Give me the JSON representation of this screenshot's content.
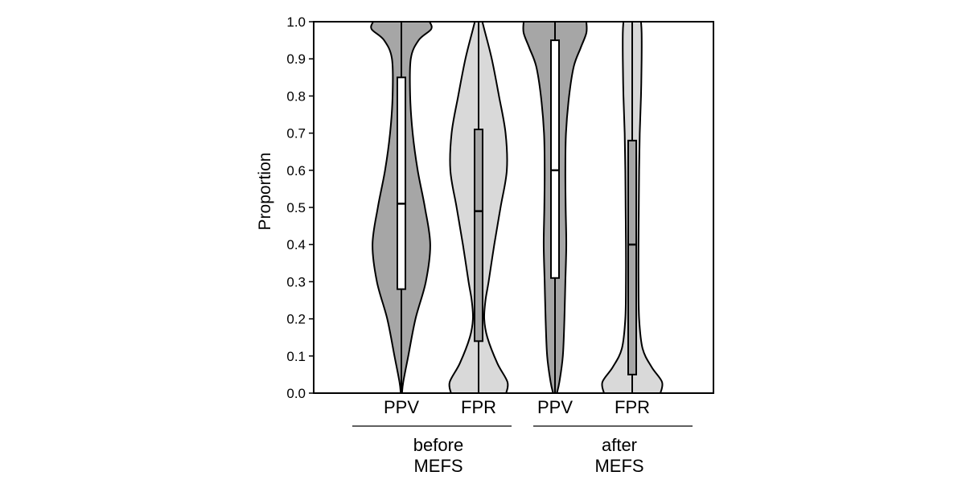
{
  "chart_data": {
    "type": "violin",
    "ylabel": "Proportion",
    "ylim": [
      0,
      1
    ],
    "yticks": [
      "0.0",
      "0.1",
      "0.2",
      "0.3",
      "0.4",
      "0.5",
      "0.6",
      "0.7",
      "0.8",
      "0.9",
      "1.0"
    ],
    "colors": {
      "PPV": "#a6a6a6",
      "FPR": "#d9d9d9"
    },
    "groups": [
      {
        "label_lines": [
          "before",
          "MEFS"
        ],
        "categories": [
          "PPV",
          "FPR"
        ]
      },
      {
        "label_lines": [
          "after",
          "MEFS"
        ],
        "categories": [
          "PPV",
          "FPR"
        ]
      }
    ],
    "violins": [
      {
        "category": "PPV",
        "group": "before",
        "color": "#a6a6a6",
        "box": {
          "q1": 0.28,
          "median": 0.51,
          "q3": 0.85,
          "min": 0.0,
          "max": 1.0
        },
        "density": [
          [
            0.0,
            0.02
          ],
          [
            0.03,
            0.06
          ],
          [
            0.1,
            0.22
          ],
          [
            0.2,
            0.45
          ],
          [
            0.3,
            0.78
          ],
          [
            0.4,
            0.92
          ],
          [
            0.5,
            0.75
          ],
          [
            0.6,
            0.52
          ],
          [
            0.7,
            0.36
          ],
          [
            0.8,
            0.28
          ],
          [
            0.9,
            0.3
          ],
          [
            0.95,
            0.55
          ],
          [
            0.98,
            0.95
          ],
          [
            1.0,
            0.9
          ]
        ]
      },
      {
        "category": "FPR",
        "group": "before",
        "color": "#d9d9d9",
        "box": {
          "q1": 0.14,
          "median": 0.49,
          "q3": 0.71,
          "min": 0.0,
          "max": 1.0
        },
        "density": [
          [
            0.0,
            0.88
          ],
          [
            0.03,
            0.92
          ],
          [
            0.08,
            0.6
          ],
          [
            0.15,
            0.28
          ],
          [
            0.2,
            0.18
          ],
          [
            0.25,
            0.22
          ],
          [
            0.3,
            0.32
          ],
          [
            0.4,
            0.5
          ],
          [
            0.5,
            0.7
          ],
          [
            0.6,
            0.9
          ],
          [
            0.7,
            0.86
          ],
          [
            0.8,
            0.65
          ],
          [
            0.9,
            0.42
          ],
          [
            0.98,
            0.18
          ],
          [
            1.0,
            0.12
          ]
        ]
      },
      {
        "category": "PPV",
        "group": "after",
        "color": "#a6a6a6",
        "box": {
          "q1": 0.31,
          "median": 0.6,
          "q3": 0.95,
          "min": 0.0,
          "max": 1.0
        },
        "density": [
          [
            0.0,
            0.06
          ],
          [
            0.03,
            0.14
          ],
          [
            0.1,
            0.25
          ],
          [
            0.2,
            0.3
          ],
          [
            0.3,
            0.33
          ],
          [
            0.4,
            0.36
          ],
          [
            0.5,
            0.34
          ],
          [
            0.6,
            0.33
          ],
          [
            0.7,
            0.35
          ],
          [
            0.8,
            0.45
          ],
          [
            0.88,
            0.6
          ],
          [
            0.93,
            0.82
          ],
          [
            0.97,
            1.0
          ],
          [
            1.0,
            1.0
          ]
        ]
      },
      {
        "category": "FPR",
        "group": "after",
        "color": "#d9d9d9",
        "box": {
          "q1": 0.05,
          "median": 0.4,
          "q3": 0.68,
          "min": 0.0,
          "max": 1.0
        },
        "density": [
          [
            0.0,
            0.9
          ],
          [
            0.03,
            0.95
          ],
          [
            0.07,
            0.62
          ],
          [
            0.12,
            0.33
          ],
          [
            0.2,
            0.22
          ],
          [
            0.3,
            0.2
          ],
          [
            0.4,
            0.2
          ],
          [
            0.5,
            0.21
          ],
          [
            0.6,
            0.22
          ],
          [
            0.7,
            0.24
          ],
          [
            0.8,
            0.28
          ],
          [
            0.9,
            0.3
          ],
          [
            0.97,
            0.3
          ],
          [
            1.0,
            0.28
          ]
        ]
      }
    ]
  }
}
